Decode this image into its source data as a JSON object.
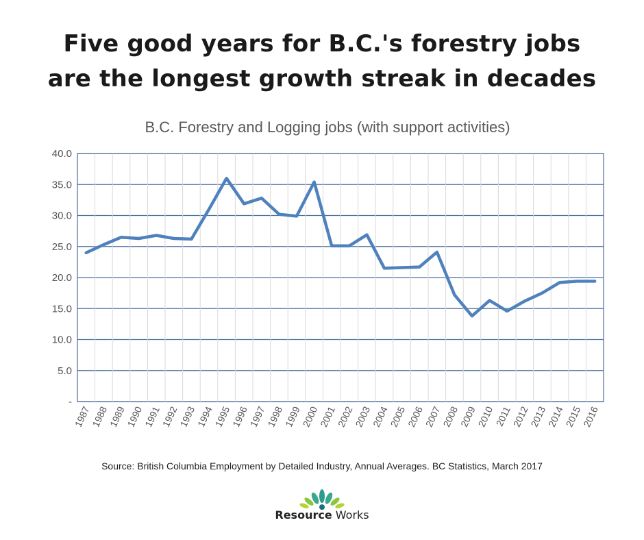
{
  "headline": {
    "line1": "Five good years for B.C.'s forestry jobs",
    "line2": "are the longest growth streak in decades"
  },
  "source": "Source: British Columbia Employment by Detailed Industry, Annual Averages. BC Statistics, March 2017",
  "brand": {
    "name_bold": "Resource",
    "name_light": " Works"
  },
  "colors": {
    "line": "#4f81bd",
    "grid": "#4a6f9e",
    "axis_text": "#555555",
    "logo_green": "#8cc63f",
    "logo_teal": "#2a9d8f"
  },
  "chart_data": {
    "type": "line",
    "title": "B.C. Forestry and Logging jobs (with support activities)",
    "xlabel": "",
    "ylabel": "",
    "ylim": [
      0,
      40
    ],
    "y_ticks": [
      0,
      5,
      10,
      15,
      20,
      25,
      30,
      35,
      40
    ],
    "y_tick_labels": [
      "-",
      "5.0",
      "10.0",
      "15.0",
      "20.0",
      "25.0",
      "30.0",
      "35.0",
      "40.0"
    ],
    "grid": true,
    "x": [
      "1987",
      "1988",
      "1989",
      "1990",
      "1991",
      "1992",
      "1993",
      "1994",
      "1995",
      "1996",
      "1997",
      "1998",
      "1999",
      "2000",
      "2001",
      "2002",
      "2003",
      "2004",
      "2005",
      "2006",
      "2007",
      "2008",
      "2009",
      "2010",
      "2011",
      "2012",
      "2013",
      "2014",
      "2015",
      "2016"
    ],
    "series": [
      {
        "values": [
          24.0,
          25.3,
          26.5,
          26.3,
          26.8,
          26.3,
          26.2,
          31.0,
          36.0,
          31.9,
          32.8,
          30.2,
          29.9,
          35.4,
          25.1,
          25.1,
          26.9,
          21.5,
          21.6,
          21.7,
          24.1,
          17.2,
          13.8,
          16.3,
          14.6,
          16.2,
          17.5,
          19.2,
          19.4,
          19.4
        ]
      }
    ]
  }
}
